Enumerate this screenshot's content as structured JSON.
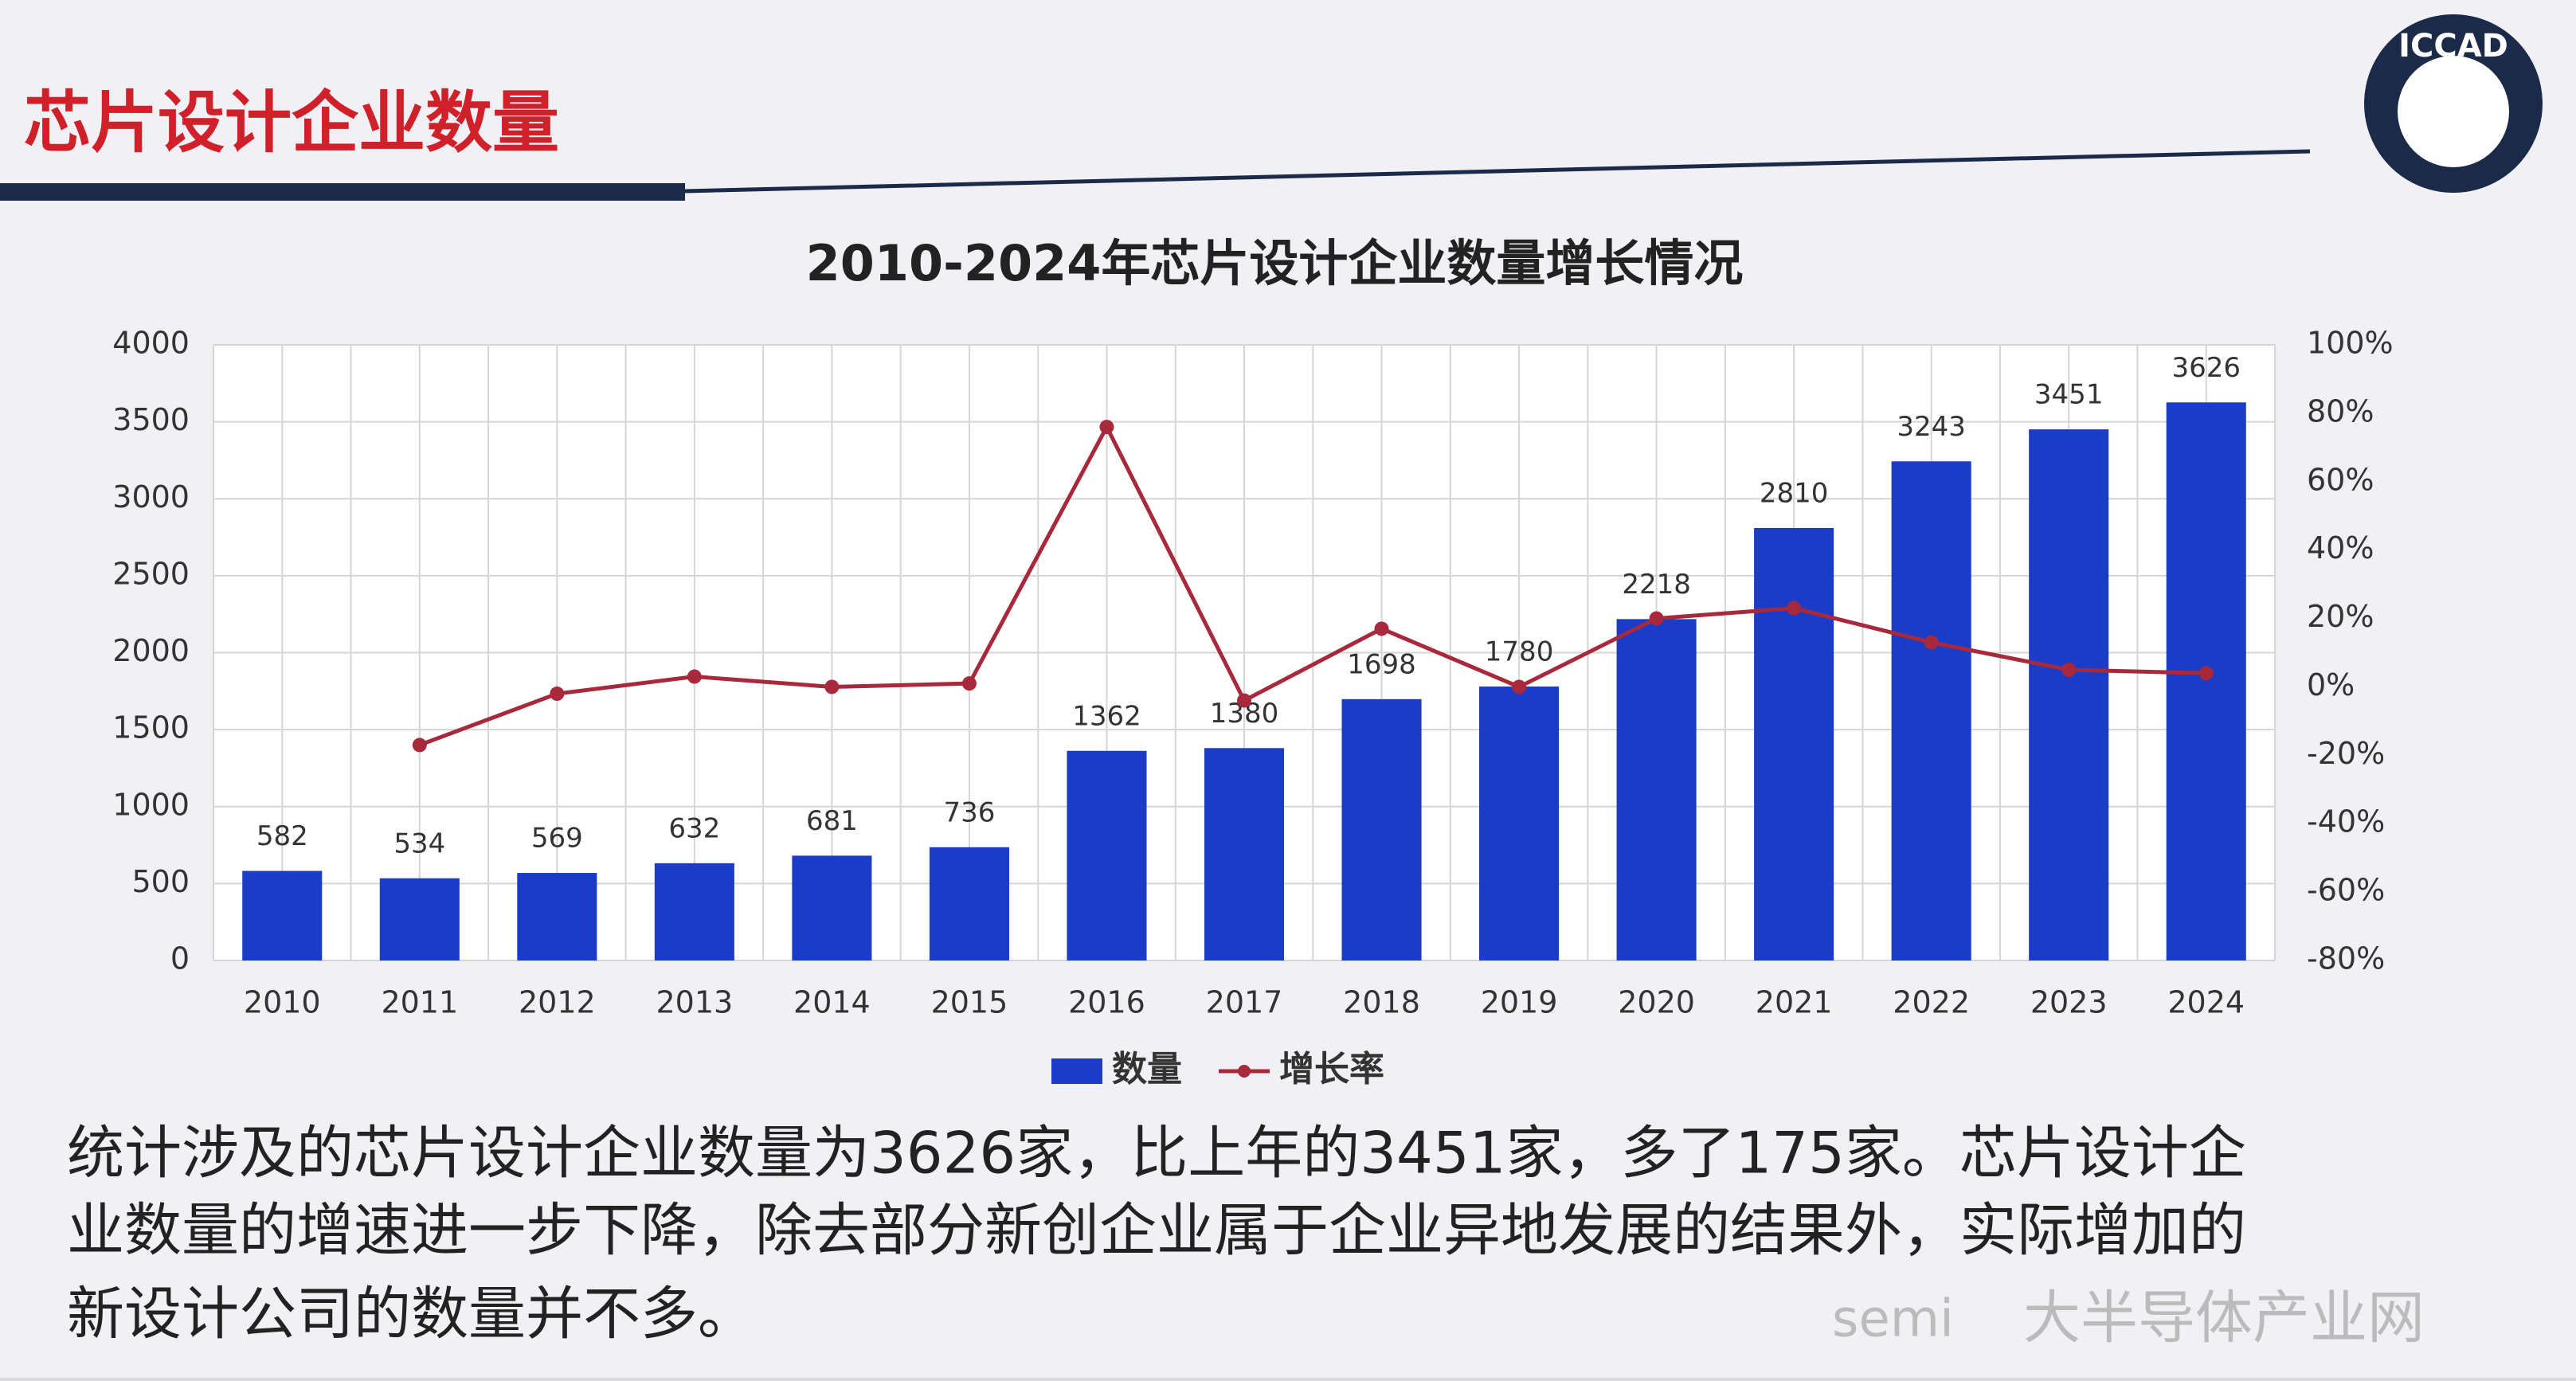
{
  "chart_data": {
    "type": "bar",
    "header": "芯片设计企业数量",
    "logo": "ICCAD",
    "title": "2010-2024年芯片设计企业数量增长情况",
    "categories": [
      "2010",
      "2011",
      "2012",
      "2013",
      "2014",
      "2015",
      "2016",
      "2017",
      "2018",
      "2019",
      "2020",
      "2021",
      "2022",
      "2023",
      "2024"
    ],
    "series": [
      {
        "name": "数量",
        "type": "bar",
        "color": "#1a3cc6",
        "values": [
          582,
          534,
          569,
          632,
          681,
          736,
          1362,
          1380,
          1698,
          1780,
          2218,
          2810,
          3243,
          3451,
          3626
        ]
      },
      {
        "name": "增长率",
        "type": "line",
        "axis": "y2",
        "color": "#a8283c",
        "values": [
          null,
          -17,
          -2,
          3,
          0,
          1,
          76,
          -4,
          17,
          0,
          20,
          23,
          13,
          5,
          4
        ]
      }
    ],
    "ylim": [
      0,
      4000
    ],
    "yticks": [
      0,
      500,
      1000,
      1500,
      2000,
      2500,
      3000,
      3500,
      4000
    ],
    "y2lim": [
      -80,
      100
    ],
    "y2ticks": [
      {
        "value": -80,
        "label": "-80%"
      },
      {
        "value": -60,
        "label": "-60%"
      },
      {
        "value": -40,
        "label": "-40%"
      },
      {
        "value": -20,
        "label": "-20%"
      },
      {
        "value": 0,
        "label": "0%"
      },
      {
        "value": 20,
        "label": "20%"
      },
      {
        "value": 40,
        "label": "40%"
      },
      {
        "value": 60,
        "label": "60%"
      },
      {
        "value": 80,
        "label": "80%"
      },
      {
        "value": 100,
        "label": "100%"
      }
    ],
    "grid": true,
    "legend": "bottom",
    "description": [
      "统计涉及的芯片设计企业数量为3626家，比上年的3451家，多了175家。芯片设计企",
      "业数量的增速进一步下降，除去部分新创企业属于企业异地发展的结果外，实际增加的",
      "新设计公司的数量并不多。"
    ],
    "watermark": [
      "semi",
      "大半导体产业网"
    ]
  }
}
